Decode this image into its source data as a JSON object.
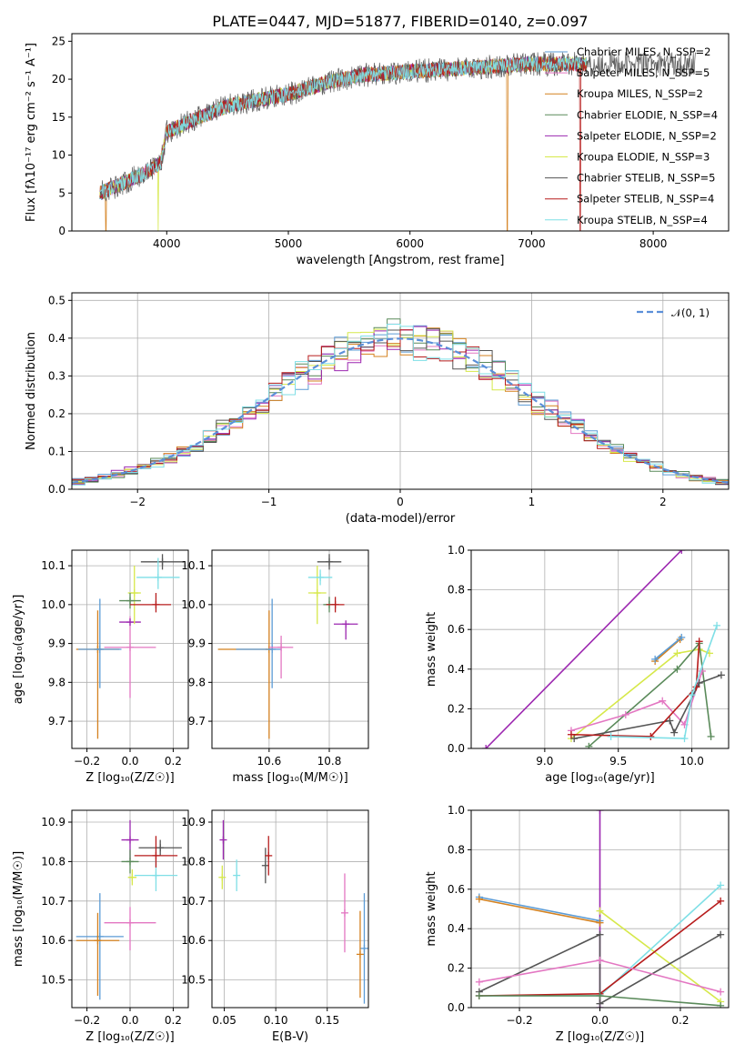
{
  "figure_title": "PLATE=0447, MJD=51877, FIBERID=0140, z=0.097",
  "chart_data": [
    {
      "id": "spectrum",
      "type": "line",
      "title": "PLATE=0447, MJD=51877, FIBERID=0140, z=0.097",
      "xlabel": "wavelength [Angstrom, rest frame]",
      "ylabel": "Flux [fλ10⁻¹⁷ erg cm⁻² s⁻¹ A⁻¹]",
      "xlim": [
        3220,
        8620
      ],
      "ylim": [
        0,
        26
      ],
      "xticks": [
        "4000",
        "5000",
        "6000",
        "7000",
        "8000"
      ],
      "yticks": [
        "0",
        "5",
        "10",
        "15",
        "20",
        "25"
      ],
      "grid": false,
      "legend": "top-right",
      "series": [
        {
          "name": "Chabrier MILES, N_SSP=2",
          "color": "#5b9bd5"
        },
        {
          "name": "Salpeter MILES, N_SSP=5",
          "color": "#e377c2"
        },
        {
          "name": "Kroupa MILES, N_SSP=2",
          "color": "#d4811f"
        },
        {
          "name": "Chabrier ELODIE, N_SSP=4",
          "color": "#5a8a5a"
        },
        {
          "name": "Salpeter ELODIE, N_SSP=2",
          "color": "#9c27b0"
        },
        {
          "name": "Kroupa ELODIE, N_SSP=3",
          "color": "#d6e84a"
        },
        {
          "name": "Chabrier STELIB, N_SSP=5",
          "color": "#555555"
        },
        {
          "name": "Salpeter STELIB, N_SSP=4",
          "color": "#b71c1c"
        },
        {
          "name": "Kroupa STELIB, N_SSP=4",
          "color": "#7fdfe6"
        }
      ],
      "approx_continuum": {
        "x": [
          3450,
          3600,
          3800,
          3950,
          4000,
          4200,
          4500,
          5000,
          5300,
          5600,
          6000,
          6500,
          7000,
          7400
        ],
        "y": [
          5.0,
          6.0,
          7.5,
          9.0,
          13.0,
          14.5,
          16.5,
          18.0,
          19.5,
          20.5,
          21.0,
          21.5,
          22.0,
          22.0
        ]
      },
      "spectrum_end": 8350,
      "dips": [
        {
          "x": 3930,
          "y": 0
        },
        {
          "x": 6800,
          "y": 0
        },
        {
          "x": 7400,
          "y": 0
        },
        {
          "x": 3500,
          "y": 0
        }
      ]
    },
    {
      "id": "residuals",
      "type": "line",
      "xlabel": "(data-model)/error",
      "ylabel": "Normed distribution",
      "xlim": [
        -2.5,
        2.5
      ],
      "ylim": [
        0,
        0.52
      ],
      "xticks": [
        "−2",
        "−1",
        "0",
        "1",
        "2"
      ],
      "yticks": [
        "0.0",
        "0.1",
        "0.2",
        "0.3",
        "0.4",
        "0.5"
      ],
      "grid": true,
      "legend": "top-right",
      "legend_label": "𝒩(0, 1)",
      "gaussian_color": "#5b8fd9",
      "hist_bin_width": 0.1
    },
    {
      "id": "Z_age",
      "type": "scatter",
      "xlabel": "Z [log₁₀(Z/Z☉)]",
      "ylabel": "age [log₁₀(age/yr)]",
      "xlim": [
        -0.27,
        0.27
      ],
      "ylim": [
        9.63,
        10.14
      ],
      "xticks": [
        {
          "v": -0.2,
          "t": "−0.2"
        },
        {
          "v": 0.0,
          "t": "0.0"
        },
        {
          "v": 0.2,
          "t": "0.2"
        }
      ],
      "yticks": [
        {
          "v": 9.7,
          "t": "9.7"
        },
        {
          "v": 9.8,
          "t": "9.8"
        },
        {
          "v": 9.9,
          "t": "9.9"
        },
        {
          "v": 10.0,
          "t": "10.0"
        },
        {
          "v": 10.1,
          "t": "10.1"
        }
      ],
      "points": [
        {
          "color": "#d4811f",
          "x": -0.15,
          "y": 9.885,
          "xerr": [
            0.1,
            0.1
          ],
          "yerr": [
            0.23,
            0.1
          ]
        },
        {
          "color": "#5b9bd5",
          "x": -0.14,
          "y": 9.885,
          "xerr": [
            0.1,
            0.1
          ],
          "yerr": [
            0.1,
            0.13
          ]
        },
        {
          "color": "#e377c2",
          "x": 0.0,
          "y": 9.89,
          "xerr": [
            0.12,
            0.12
          ],
          "yerr": [
            0.13,
            0.08
          ]
        },
        {
          "color": "#9c27b0",
          "x": 0.0,
          "y": 9.955,
          "xerr": [
            0.05,
            0.05
          ],
          "yerr": [
            0.0,
            0.0
          ]
        },
        {
          "color": "#d6e84a",
          "x": 0.02,
          "y": 10.03,
          "xerr": [
            0.03,
            0.03
          ],
          "yerr": [
            0.08,
            0.07
          ]
        },
        {
          "color": "#5a8a5a",
          "x": 0.0,
          "y": 10.01,
          "xerr": [
            0.05,
            0.05
          ],
          "yerr": [
            0.02,
            0.02
          ]
        },
        {
          "color": "#555555",
          "x": 0.15,
          "y": 10.11,
          "xerr": [
            0.1,
            0.1
          ],
          "yerr": [
            0.02,
            0.02
          ]
        },
        {
          "color": "#7fdfe6",
          "x": 0.13,
          "y": 10.07,
          "xerr": [
            0.1,
            0.1
          ],
          "yerr": [
            0.03,
            0.05
          ]
        },
        {
          "color": "#b71c1c",
          "x": 0.12,
          "y": 10.0,
          "xerr": [
            0.12,
            0.07
          ],
          "yerr": [
            0.02,
            0.03
          ]
        }
      ]
    },
    {
      "id": "mass_age",
      "type": "scatter",
      "xlabel": "mass [log₁₀(M/M☉)]",
      "ylabel": "",
      "xlim": [
        10.41,
        10.93
      ],
      "ylim": [
        9.63,
        10.14
      ],
      "xticks": [
        {
          "v": 10.6,
          "t": "10.6"
        },
        {
          "v": 10.8,
          "t": "10.8"
        }
      ],
      "yticks": [
        {
          "v": 9.7,
          "t": "9.7"
        },
        {
          "v": 9.8,
          "t": "9.8"
        },
        {
          "v": 9.9,
          "t": "9.9"
        },
        {
          "v": 10.0,
          "t": "10.0"
        },
        {
          "v": 10.1,
          "t": "10.1"
        }
      ],
      "points": [
        {
          "color": "#d4811f",
          "x": 10.6,
          "y": 9.885,
          "xerr": [
            0.17,
            0.0
          ],
          "yerr": [
            0.23,
            0.1
          ]
        },
        {
          "color": "#5b9bd5",
          "x": 10.61,
          "y": 9.885,
          "xerr": [
            0.12,
            0.03
          ],
          "yerr": [
            0.1,
            0.13
          ]
        },
        {
          "color": "#e377c2",
          "x": 10.64,
          "y": 9.89,
          "xerr": [
            0.04,
            0.04
          ],
          "yerr": [
            0.08,
            0.03
          ]
        },
        {
          "color": "#9c27b0",
          "x": 10.855,
          "y": 9.95,
          "xerr": [
            0.04,
            0.04
          ],
          "yerr": [
            0.04,
            0.0
          ]
        },
        {
          "color": "#d6e84a",
          "x": 10.76,
          "y": 10.03,
          "xerr": [
            0.03,
            0.03
          ],
          "yerr": [
            0.08,
            0.07
          ]
        },
        {
          "color": "#5a8a5a",
          "x": 10.8,
          "y": 10.0,
          "xerr": [
            0.02,
            0.02
          ],
          "yerr": [
            0.02,
            0.02
          ]
        },
        {
          "color": "#555555",
          "x": 10.8,
          "y": 10.11,
          "xerr": [
            0.04,
            0.04
          ],
          "yerr": [
            0.02,
            0.02
          ]
        },
        {
          "color": "#7fdfe6",
          "x": 10.77,
          "y": 10.07,
          "xerr": [
            0.04,
            0.04
          ],
          "yerr": [
            0.02,
            0.02
          ]
        },
        {
          "color": "#b71c1c",
          "x": 10.82,
          "y": 10.0,
          "xerr": [
            0.03,
            0.03
          ],
          "yerr": [
            0.02,
            0.02
          ]
        }
      ]
    },
    {
      "id": "age_weight",
      "type": "line",
      "xlabel": "age [log₁₀(age/yr)]",
      "ylabel": "mass weight",
      "xlim": [
        8.5,
        10.25
      ],
      "ylim": [
        0,
        1.0
      ],
      "xticks": [
        {
          "v": 9.0,
          "t": "9.0"
        },
        {
          "v": 9.5,
          "t": "9.5"
        },
        {
          "v": 10.0,
          "t": "10.0"
        }
      ],
      "yticks": [
        {
          "v": 0,
          "t": "0.0"
        },
        {
          "v": 0.2,
          "t": "0.2"
        },
        {
          "v": 0.4,
          "t": "0.4"
        },
        {
          "v": 0.6,
          "t": "0.6"
        },
        {
          "v": 0.8,
          "t": "0.8"
        },
        {
          "v": 1.0,
          "t": "1.0"
        }
      ],
      "series": [
        {
          "color": "#9c27b0",
          "x": [
            8.6,
            9.93
          ],
          "y": [
            0.0,
            1.0
          ]
        },
        {
          "color": "#d4811f",
          "x": [
            9.75,
            9.92
          ],
          "y": [
            0.44,
            0.55
          ]
        },
        {
          "color": "#5b9bd5",
          "x": [
            9.75,
            9.93
          ],
          "y": [
            0.45,
            0.56
          ]
        },
        {
          "color": "#d6e84a",
          "x": [
            9.18,
            9.9,
            10.05,
            10.12
          ],
          "y": [
            0.05,
            0.48,
            0.5,
            0.48
          ]
        },
        {
          "color": "#5a8a5a",
          "x": [
            9.3,
            9.9,
            10.05,
            10.13
          ],
          "y": [
            0.01,
            0.4,
            0.53,
            0.06
          ]
        },
        {
          "color": "#e377c2",
          "x": [
            9.18,
            9.55,
            9.8,
            9.95,
            10.07
          ],
          "y": [
            0.09,
            0.17,
            0.24,
            0.12,
            0.39
          ]
        },
        {
          "color": "#555555",
          "x": [
            9.2,
            9.85,
            9.88,
            10.05,
            10.2
          ],
          "y": [
            0.05,
            0.14,
            0.08,
            0.33,
            0.37
          ]
        },
        {
          "color": "#b71c1c",
          "x": [
            9.18,
            9.72,
            10.03,
            10.05
          ],
          "y": [
            0.07,
            0.06,
            0.31,
            0.54
          ]
        },
        {
          "color": "#7fdfe6",
          "x": [
            9.45,
            9.95,
            10.0,
            10.17
          ],
          "y": [
            0.06,
            0.05,
            0.27,
            0.62
          ]
        }
      ]
    },
    {
      "id": "Z_mass",
      "type": "scatter",
      "xlabel": "Z [log₁₀(Z/Z☉)]",
      "ylabel": "mass [log₁₀(M/M☉)]",
      "xlim": [
        -0.27,
        0.27
      ],
      "ylim": [
        10.43,
        10.93
      ],
      "xticks": [
        {
          "v": -0.2,
          "t": "−0.2"
        },
        {
          "v": 0.0,
          "t": "0.0"
        },
        {
          "v": 0.2,
          "t": "0.2"
        }
      ],
      "yticks": [
        {
          "v": 10.5,
          "t": "10.5"
        },
        {
          "v": 10.6,
          "t": "10.6"
        },
        {
          "v": 10.7,
          "t": "10.7"
        },
        {
          "v": 10.8,
          "t": "10.8"
        },
        {
          "v": 10.9,
          "t": "10.9"
        }
      ],
      "points": [
        {
          "color": "#5b9bd5",
          "x": -0.14,
          "y": 10.61,
          "xerr": [
            0.11,
            0.11
          ],
          "yerr": [
            0.16,
            0.11
          ]
        },
        {
          "color": "#d4811f",
          "x": -0.15,
          "y": 10.6,
          "xerr": [
            0.1,
            0.1
          ],
          "yerr": [
            0.14,
            0.07
          ]
        },
        {
          "color": "#e377c2",
          "x": 0.0,
          "y": 10.645,
          "xerr": [
            0.12,
            0.12
          ],
          "yerr": [
            0.07,
            0.04
          ]
        },
        {
          "color": "#9c27b0",
          "x": 0.0,
          "y": 10.855,
          "xerr": [
            0.04,
            0.04
          ],
          "yerr": [
            0.05,
            0.05
          ]
        },
        {
          "color": "#d6e84a",
          "x": 0.01,
          "y": 10.76,
          "xerr": [
            0.02,
            0.02
          ],
          "yerr": [
            0.02,
            0.02
          ]
        },
        {
          "color": "#5a8a5a",
          "x": 0.0,
          "y": 10.8,
          "xerr": [
            0.04,
            0.04
          ],
          "yerr": [
            0.03,
            0.03
          ]
        },
        {
          "color": "#555555",
          "x": 0.14,
          "y": 10.835,
          "xerr": [
            0.1,
            0.1
          ],
          "yerr": [
            0.02,
            0.02
          ]
        },
        {
          "color": "#7fdfe6",
          "x": 0.12,
          "y": 10.765,
          "xerr": [
            0.1,
            0.1
          ],
          "yerr": [
            0.04,
            0.04
          ]
        },
        {
          "color": "#b71c1c",
          "x": 0.12,
          "y": 10.815,
          "xerr": [
            0.1,
            0.1
          ],
          "yerr": [
            0.03,
            0.05
          ]
        }
      ]
    },
    {
      "id": "ebv_mass",
      "type": "scatter",
      "xlabel": "E(B-V)",
      "ylabel": "",
      "xlim": [
        0.038,
        0.19
      ],
      "ylim": [
        10.43,
        10.93
      ],
      "xticks": [
        {
          "v": 0.05,
          "t": "0.05"
        },
        {
          "v": 0.1,
          "t": "0.10"
        },
        {
          "v": 0.15,
          "t": "0.15"
        }
      ],
      "yticks": [
        {
          "v": 10.5,
          "t": "10.5"
        },
        {
          "v": 10.6,
          "t": "10.6"
        },
        {
          "v": 10.7,
          "t": "10.7"
        },
        {
          "v": 10.8,
          "t": "10.8"
        },
        {
          "v": 10.9,
          "t": "10.9"
        }
      ],
      "points": [
        {
          "color": "#9c27b0",
          "x": 0.049,
          "y": 10.855,
          "xerr": [
            0,
            0
          ],
          "yerr": [
            0.05,
            0.05
          ]
        },
        {
          "color": "#d6e84a",
          "x": 0.048,
          "y": 10.76,
          "xerr": [
            0,
            0
          ],
          "yerr": [
            0.03,
            0.03
          ]
        },
        {
          "color": "#7fdfe6",
          "x": 0.062,
          "y": 10.765,
          "xerr": [
            0,
            0
          ],
          "yerr": [
            0.04,
            0.04
          ]
        },
        {
          "color": "#555555",
          "x": 0.09,
          "y": 10.79,
          "xerr": [
            0,
            0
          ],
          "yerr": [
            0.045,
            0.045
          ]
        },
        {
          "color": "#b71c1c",
          "x": 0.093,
          "y": 10.815,
          "xerr": [
            0,
            0
          ],
          "yerr": [
            0.05,
            0.05
          ]
        },
        {
          "color": "#e377c2",
          "x": 0.167,
          "y": 10.67,
          "xerr": [
            0,
            0
          ],
          "yerr": [
            0.1,
            0.1
          ]
        },
        {
          "color": "#d4811f",
          "x": 0.182,
          "y": 10.565,
          "xerr": [
            0,
            0
          ],
          "yerr": [
            0.11,
            0.11
          ]
        },
        {
          "color": "#5b9bd5",
          "x": 0.186,
          "y": 10.58,
          "xerr": [
            0,
            0
          ],
          "yerr": [
            0.14,
            0.14
          ]
        }
      ]
    },
    {
      "id": "Z_weight",
      "type": "line",
      "xlabel": "Z [log₁₀(Z/Z☉)]",
      "ylabel": "mass weight",
      "xlim": [
        -0.32,
        0.32
      ],
      "ylim": [
        0,
        1.0
      ],
      "xticks": [
        {
          "v": -0.2,
          "t": "−0.2"
        },
        {
          "v": 0.0,
          "t": "0.0"
        },
        {
          "v": 0.2,
          "t": "0.2"
        }
      ],
      "yticks": [
        {
          "v": 0,
          "t": "0.0"
        },
        {
          "v": 0.2,
          "t": "0.2"
        },
        {
          "v": 0.4,
          "t": "0.4"
        },
        {
          "v": 0.6,
          "t": "0.6"
        },
        {
          "v": 0.8,
          "t": "0.8"
        },
        {
          "v": 1.0,
          "t": "1.0"
        }
      ],
      "series": [
        {
          "color": "#9c27b0",
          "x": [
            0.0,
            0.0
          ],
          "y": [
            0.0,
            1.0
          ]
        },
        {
          "color": "#5b9bd5",
          "x": [
            -0.3,
            0.0
          ],
          "y": [
            0.56,
            0.44
          ]
        },
        {
          "color": "#d4811f",
          "x": [
            -0.3,
            0.0
          ],
          "y": [
            0.55,
            0.43
          ]
        },
        {
          "color": "#d6e84a",
          "x": [
            0.0,
            0.3
          ],
          "y": [
            0.49,
            0.03
          ]
        },
        {
          "color": "#7fdfe6",
          "x": [
            -0.3,
            0.0,
            0.3
          ],
          "y": [
            0.06,
            0.06,
            0.62
          ]
        },
        {
          "color": "#b71c1c",
          "x": [
            -0.3,
            0.0,
            0.3
          ],
          "y": [
            0.06,
            0.07,
            0.54
          ]
        },
        {
          "color": "#555555",
          "x": [
            -0.3,
            0.0,
            0.0,
            0.3
          ],
          "y": [
            0.08,
            0.37,
            0.02,
            0.37
          ]
        },
        {
          "color": "#e377c2",
          "x": [
            -0.3,
            0.0,
            0.3
          ],
          "y": [
            0.13,
            0.24,
            0.08
          ]
        },
        {
          "color": "#5a8a5a",
          "x": [
            -0.3,
            0.0,
            0.3
          ],
          "y": [
            0.06,
            0.06,
            0.01
          ]
        }
      ]
    }
  ]
}
